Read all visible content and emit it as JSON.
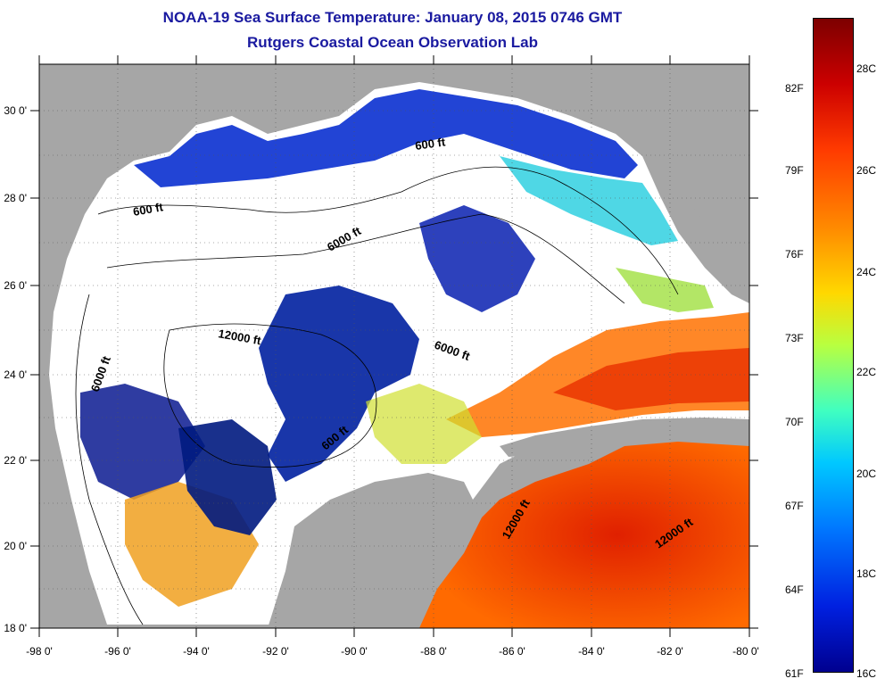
{
  "title": {
    "line1": "NOAA-19 Sea Surface Temperature:  January 08, 2015 0746 GMT",
    "line2": "Rutgers Coastal Ocean Observation Lab"
  },
  "x_axis": {
    "min": -98,
    "max": -80,
    "labels": [
      "-98 0'",
      "-96 0'",
      "-94 0'",
      "-92 0'",
      "-90 0'",
      "-88 0'",
      "-86 0'",
      "-84 0'",
      "-82 0'",
      "-80 0'"
    ]
  },
  "y_axis": {
    "min": 18,
    "max": 31,
    "labels": [
      "18 0'",
      "20 0'",
      "22 0'",
      "24 0'",
      "26 0'",
      "28 0'",
      "30 0'"
    ]
  },
  "contour_labels": [
    "600 ft",
    "600 ft",
    "6000 ft",
    "12000 ft",
    "6000 ft",
    "6000 ft",
    "600 ft",
    "12000 ft",
    "12000 ft"
  ],
  "colorbar": {
    "fahrenheit": [
      "82F",
      "79F",
      "76F",
      "73F",
      "70F",
      "67F",
      "64F",
      "61F"
    ],
    "celsius": [
      "28C",
      "26C",
      "24C",
      "22C",
      "20C",
      "18C",
      "16C"
    ],
    "range_c": [
      16,
      29
    ]
  },
  "colors": {
    "land": "#a6a6a6",
    "cloud": "#ffffff",
    "title": "#1a1aa0"
  }
}
